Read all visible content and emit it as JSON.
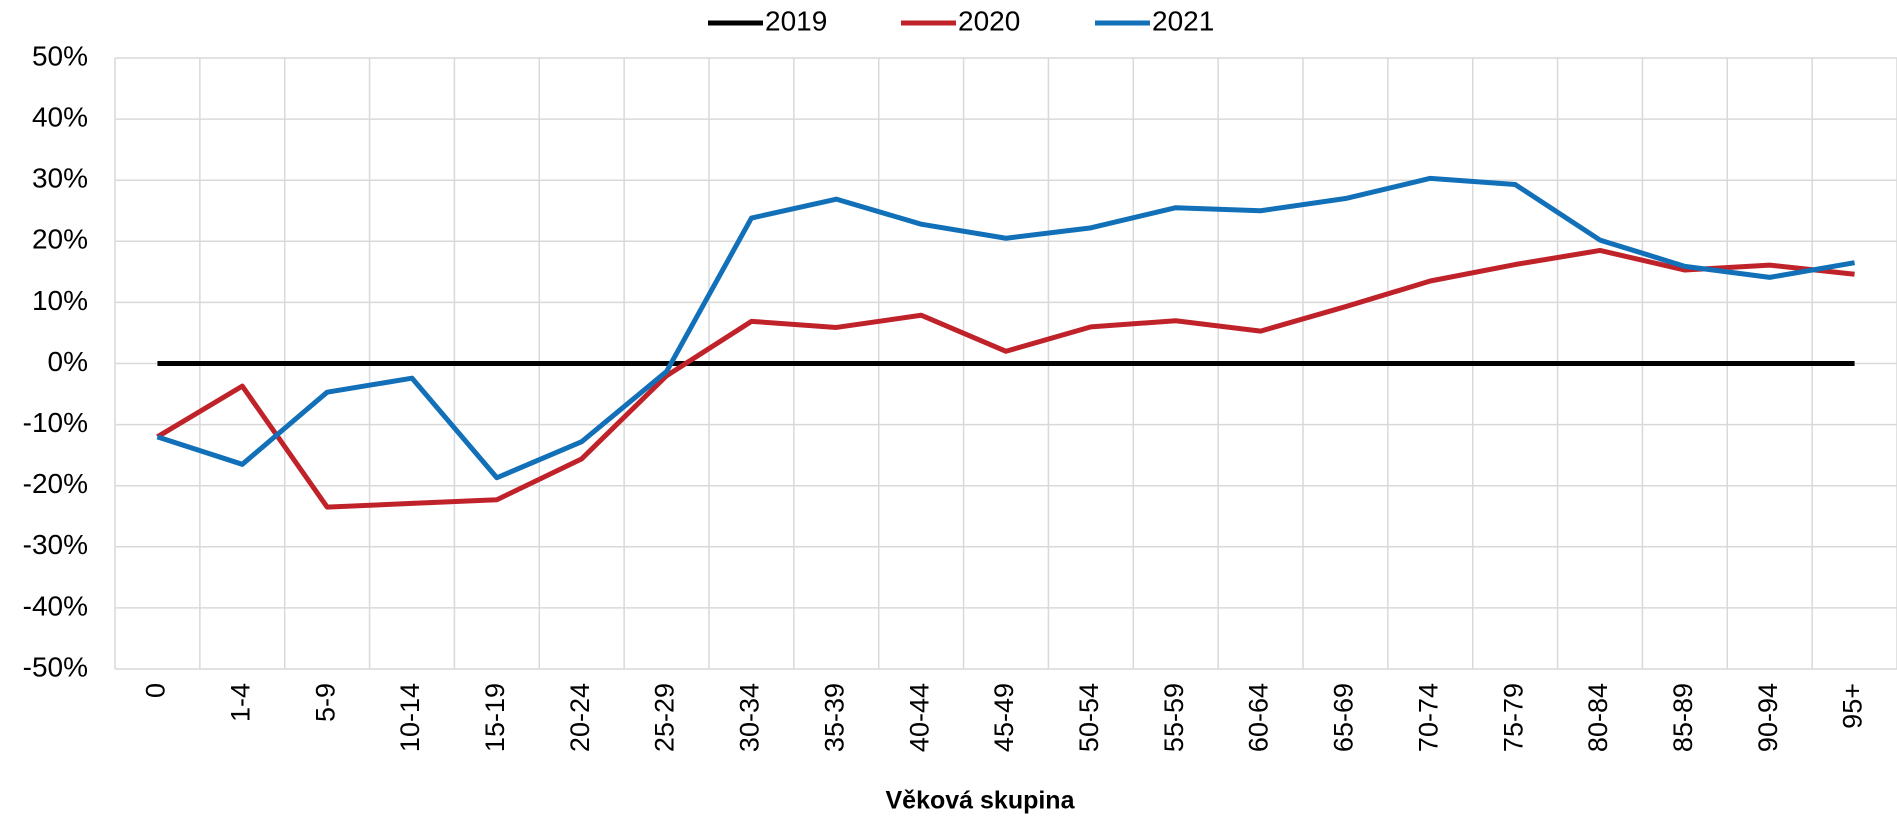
{
  "chart_data": {
    "type": "line",
    "x_label": "Věková skupina",
    "categories": [
      "0",
      "1-4",
      "5-9",
      "10-14",
      "15-19",
      "20-24",
      "25-29",
      "30-34",
      "35-39",
      "40-44",
      "45-49",
      "50-54",
      "55-59",
      "60-64",
      "65-69",
      "70-74",
      "75-79",
      "80-84",
      "85-89",
      "90-94",
      "95+"
    ],
    "series": [
      {
        "name": "2019",
        "color": "#000000",
        "values": [
          0,
          0,
          0,
          0,
          0,
          0,
          0,
          0,
          0,
          0,
          0,
          0,
          0,
          0,
          0,
          0,
          0,
          0,
          0,
          0,
          0
        ]
      },
      {
        "name": "2020",
        "color": "#c0222a",
        "values": [
          -12,
          -3.7,
          -23.5,
          -22.9,
          -22.3,
          -15.6,
          -2,
          6.9,
          5.9,
          7.9,
          2,
          6,
          7,
          5.3,
          9.3,
          13.5,
          16.2,
          18.5,
          15.3,
          16.1,
          14.6
        ]
      },
      {
        "name": "2021",
        "color": "#1170b8",
        "values": [
          -12,
          -16.5,
          -4.7,
          -2.4,
          -18.7,
          -12.8,
          -1.3,
          23.8,
          26.9,
          22.8,
          20.5,
          22.2,
          25.5,
          25,
          27,
          30.3,
          29.3,
          20.2,
          15.9,
          14.1,
          16.5
        ]
      }
    ],
    "ylim": [
      -50,
      50
    ],
    "yticks": [
      {
        "value": -50,
        "label": "-50%"
      },
      {
        "value": -40,
        "label": "-40%"
      },
      {
        "value": -30,
        "label": "-30%"
      },
      {
        "value": -20,
        "label": "-20%"
      },
      {
        "value": -10,
        "label": "-10%"
      },
      {
        "value": 0,
        "label": "0%"
      },
      {
        "value": 10,
        "label": "10%"
      },
      {
        "value": 20,
        "label": "20%"
      },
      {
        "value": 30,
        "label": "30%"
      },
      {
        "value": 40,
        "label": "40%"
      },
      {
        "value": 50,
        "label": "50%"
      }
    ],
    "grid": true,
    "legend": "top"
  }
}
